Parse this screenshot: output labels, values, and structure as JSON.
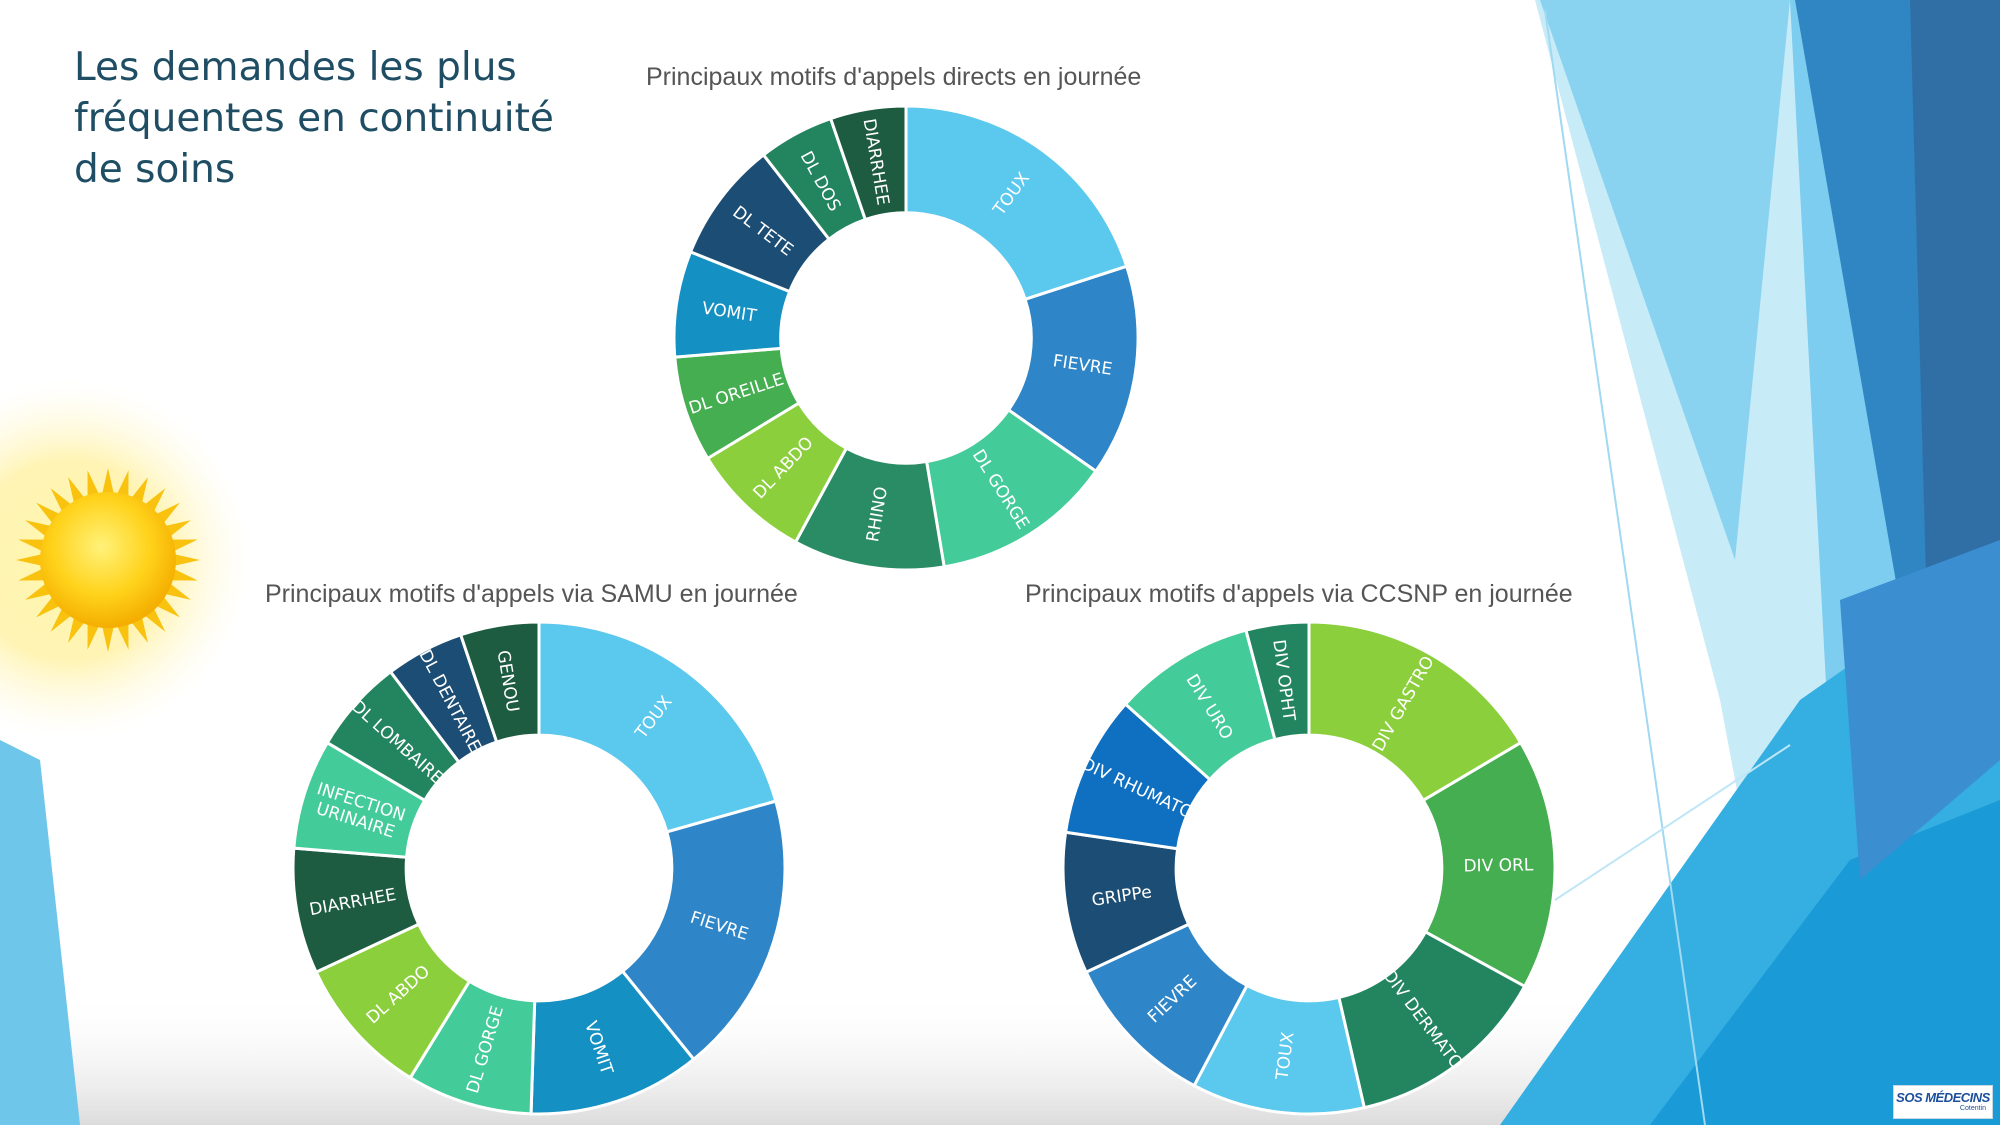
{
  "slide": {
    "title": "Les demandes les plus fréquentes en continuité de soins",
    "logo_text": "SOS MÉDECINS",
    "logo_subtext": "Cotentin"
  },
  "chart_data": [
    {
      "type": "donut",
      "title": "Principaux motifs d'appels directs en journée",
      "categories": [
        "TOUX",
        "FIEVRE",
        "DL GORGE",
        "RHINO",
        "DL ABDO",
        "DL OREILLE",
        "VOMIT",
        "DL TETE",
        "DL DOS",
        "DIARRHEE"
      ],
      "values": [
        19,
        14,
        12,
        10,
        8,
        7,
        7,
        8,
        5,
        5
      ],
      "colors": [
        "#5bc8ee",
        "#2e85c8",
        "#43cc9a",
        "#2a8c64",
        "#8ccf3c",
        "#44ae50",
        "#1490c2",
        "#1c4d74",
        "#238560",
        "#1d5c40"
      ]
    },
    {
      "type": "donut",
      "title": "Principaux motifs d'appels via SAMU en journée",
      "categories": [
        "TOUX",
        "FIEVRE",
        "VOMIT",
        "DL GORGE",
        "DL ABDO",
        "DIARRHEE",
        "INFECTION URINAIRE",
        "DL LOMBAIRE",
        "DL DENTAIRE",
        "GENOU"
      ],
      "values": [
        20,
        18,
        11,
        8,
        9,
        8,
        7,
        6,
        5,
        5
      ],
      "colors": [
        "#5bc8ee",
        "#2e85c8",
        "#1490c2",
        "#43cc9a",
        "#8ccf3c",
        "#1d5c40",
        "#43cc9a",
        "#238560",
        "#1c4d74",
        "#1d5c40"
      ]
    },
    {
      "type": "donut",
      "title": "Principaux motifs d'appels via CCSNP en journée",
      "categories": [
        "DIV GASTRO",
        "DIV ORL",
        "DIV DERMATO",
        "TOUX",
        "FIEVRE",
        "GRIPPe",
        "DIV RHUMATO",
        "DIV URO",
        "DIV OPHT"
      ],
      "values": [
        16,
        16,
        13,
        11,
        10,
        9,
        9,
        9,
        4
      ],
      "colors": [
        "#8ccf3c",
        "#44ae50",
        "#238560",
        "#5bc8ee",
        "#2e85c8",
        "#1c4d74",
        "#0f6fc0",
        "#43cc9a",
        "#238560"
      ]
    }
  ]
}
